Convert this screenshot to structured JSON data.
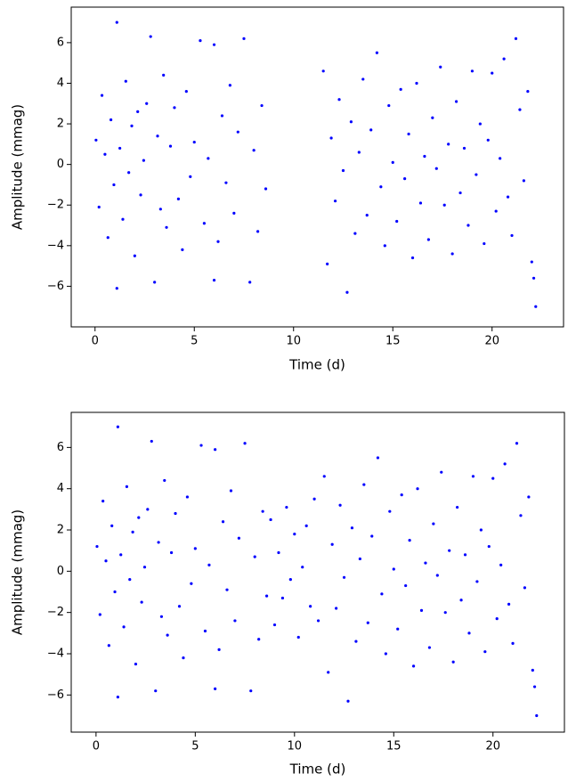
{
  "chart_data": [
    {
      "type": "scatter",
      "color": "#0000ff",
      "x_label": "Time (d)",
      "y_label": "Amplitude (mmag)",
      "xlim": [
        -1.2,
        23.6
      ],
      "ylim": [
        -8,
        7.75
      ],
      "xticks": [
        0,
        5,
        10,
        15,
        20
      ],
      "yticks": [
        {
          "value": -6,
          "label": "−6"
        },
        {
          "value": -4,
          "label": "−4"
        },
        {
          "value": -2,
          "label": "−2"
        },
        0,
        2,
        4,
        6
      ],
      "x": [
        0.05,
        0.2,
        0.35,
        0.5,
        0.65,
        0.8,
        0.95,
        1.1,
        1.1,
        1.25,
        1.4,
        1.55,
        1.7,
        1.85,
        2.0,
        2.15,
        2.3,
        2.45,
        2.6,
        2.8,
        3.0,
        3.15,
        3.3,
        3.45,
        3.6,
        3.8,
        4.0,
        4.2,
        4.4,
        4.6,
        4.8,
        5.0,
        5.3,
        5.5,
        5.7,
        6.0,
        6.0,
        6.2,
        6.4,
        6.6,
        6.8,
        7.0,
        7.2,
        7.5,
        7.8,
        8.0,
        8.2,
        8.4,
        8.6,
        11.5,
        11.7,
        11.9,
        12.1,
        12.3,
        12.5,
        12.7,
        12.9,
        13.1,
        13.3,
        13.5,
        13.7,
        13.9,
        14.2,
        14.4,
        14.6,
        14.8,
        15.0,
        15.2,
        15.4,
        15.6,
        15.8,
        16.0,
        16.2,
        16.4,
        16.6,
        16.8,
        17.0,
        17.2,
        17.4,
        17.6,
        17.8,
        18.0,
        18.2,
        18.4,
        18.6,
        18.8,
        19.0,
        19.2,
        19.4,
        19.6,
        19.8,
        20.0,
        20.2,
        20.4,
        20.6,
        20.8,
        21.0,
        21.2,
        21.4,
        21.6,
        21.8,
        22.0,
        22.1,
        22.2
      ],
      "values": [
        1.2,
        -2.1,
        3.4,
        0.5,
        -3.6,
        2.2,
        -1.0,
        7.0,
        -6.1,
        0.8,
        -2.7,
        4.1,
        -0.4,
        1.9,
        -4.5,
        2.6,
        -1.5,
        0.2,
        3.0,
        6.3,
        -5.8,
        1.4,
        -2.2,
        4.4,
        -3.1,
        0.9,
        2.8,
        -1.7,
        -4.2,
        3.6,
        -0.6,
        1.1,
        6.1,
        -2.9,
        0.3,
        5.9,
        -5.7,
        -3.8,
        2.4,
        -0.9,
        3.9,
        -2.4,
        1.6,
        6.2,
        -5.8,
        0.7,
        -3.3,
        2.9,
        -1.2,
        4.6,
        -4.9,
        1.3,
        -1.8,
        3.2,
        -0.3,
        -6.3,
        2.1,
        -3.4,
        0.6,
        4.2,
        -2.5,
        1.7,
        5.5,
        -1.1,
        -4.0,
        2.9,
        0.1,
        -2.8,
        3.7,
        -0.7,
        1.5,
        -4.6,
        4.0,
        -1.9,
        0.4,
        -3.7,
        2.3,
        -0.2,
        4.8,
        -2.0,
        1.0,
        -4.4,
        3.1,
        -1.4,
        0.8,
        -3.0,
        4.6,
        -0.5,
        2.0,
        -3.9,
        1.2,
        4.5,
        -2.3,
        0.3,
        5.2,
        -1.6,
        -3.5,
        6.2,
        2.7,
        -0.8,
        3.6,
        -4.8,
        -5.6,
        -7.0
      ]
    },
    {
      "type": "scatter",
      "color": "#0000ff",
      "x_label": "Time (d)",
      "y_label": "Amplitude (mmag)",
      "xlim": [
        -1.25,
        23.6
      ],
      "ylim": [
        -7.8,
        7.7
      ],
      "xticks": [
        0,
        5,
        10,
        15,
        20
      ],
      "yticks": [
        {
          "value": -6,
          "label": "−6"
        },
        {
          "value": -4,
          "label": "−4"
        },
        {
          "value": -2,
          "label": "−2"
        },
        0,
        2,
        4,
        6
      ],
      "x": [
        0.05,
        0.2,
        0.35,
        0.5,
        0.65,
        0.8,
        0.95,
        1.1,
        1.1,
        1.25,
        1.4,
        1.55,
        1.7,
        1.85,
        2.0,
        2.15,
        2.3,
        2.45,
        2.6,
        2.8,
        3.0,
        3.15,
        3.3,
        3.45,
        3.6,
        3.8,
        4.0,
        4.2,
        4.4,
        4.6,
        4.8,
        5.0,
        5.3,
        5.5,
        5.7,
        6.0,
        6.0,
        6.2,
        6.4,
        6.6,
        6.8,
        7.0,
        7.2,
        7.5,
        7.8,
        8.0,
        8.2,
        8.4,
        8.6,
        8.8,
        9.0,
        9.2,
        9.4,
        9.6,
        9.8,
        10.0,
        10.2,
        10.4,
        10.6,
        10.8,
        11.0,
        11.2,
        11.5,
        11.7,
        11.9,
        12.1,
        12.3,
        12.5,
        12.7,
        12.9,
        13.1,
        13.3,
        13.5,
        13.7,
        13.9,
        14.2,
        14.4,
        14.6,
        14.8,
        15.0,
        15.2,
        15.4,
        15.6,
        15.8,
        16.0,
        16.2,
        16.4,
        16.6,
        16.8,
        17.0,
        17.2,
        17.4,
        17.6,
        17.8,
        18.0,
        18.2,
        18.4,
        18.6,
        18.8,
        19.0,
        19.2,
        19.4,
        19.6,
        19.8,
        20.0,
        20.2,
        20.4,
        20.6,
        20.8,
        21.0,
        21.2,
        21.4,
        21.6,
        21.8,
        22.0,
        22.1,
        22.2
      ],
      "values": [
        1.2,
        -2.1,
        3.4,
        0.5,
        -3.6,
        2.2,
        -1.0,
        7.0,
        -6.1,
        0.8,
        -2.7,
        4.1,
        -0.4,
        1.9,
        -4.5,
        2.6,
        -1.5,
        0.2,
        3.0,
        6.3,
        -5.8,
        1.4,
        -2.2,
        4.4,
        -3.1,
        0.9,
        2.8,
        -1.7,
        -4.2,
        3.6,
        -0.6,
        1.1,
        6.1,
        -2.9,
        0.3,
        5.9,
        -5.7,
        -3.8,
        2.4,
        -0.9,
        3.9,
        -2.4,
        1.6,
        6.2,
        -5.8,
        0.7,
        -3.3,
        2.9,
        -1.2,
        2.5,
        -2.6,
        0.9,
        -1.3,
        3.1,
        -0.4,
        1.8,
        -3.2,
        0.2,
        2.2,
        -1.7,
        3.5,
        -2.4,
        4.6,
        -4.9,
        1.3,
        -1.8,
        3.2,
        -0.3,
        -6.3,
        2.1,
        -3.4,
        0.6,
        4.2,
        -2.5,
        1.7,
        5.5,
        -1.1,
        -4.0,
        2.9,
        0.1,
        -2.8,
        3.7,
        -0.7,
        1.5,
        -4.6,
        4.0,
        -1.9,
        0.4,
        -3.7,
        2.3,
        -0.2,
        4.8,
        -2.0,
        1.0,
        -4.4,
        3.1,
        -1.4,
        0.8,
        -3.0,
        4.6,
        -0.5,
        2.0,
        -3.9,
        1.2,
        4.5,
        -2.3,
        0.3,
        5.2,
        -1.6,
        -3.5,
        6.2,
        2.7,
        -0.8,
        3.6,
        -4.8,
        -5.6,
        -7.0
      ]
    }
  ]
}
